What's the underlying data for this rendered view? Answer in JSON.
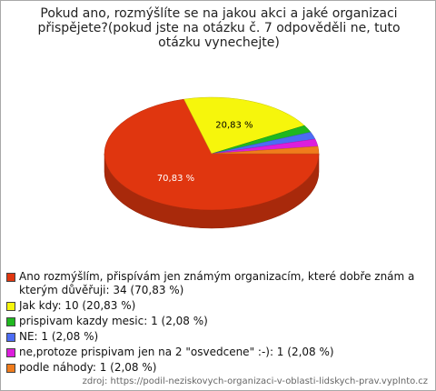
{
  "chart_data": {
    "type": "pie3d",
    "title": "Pokud ano, rozmýšlíte se na jakou akci a jaké organizaci přispějete?(pokud jste na otázku č. 7 odpověděli ne, tuto otázku vynechejte)",
    "series": [
      {
        "name": "Ano rozmýšlím, přispívám jen známým organizacím, které dobře znám a kterým důvěřuji: 34 (70,83 %)",
        "color": "#e0360f",
        "value": 70.83,
        "value_label": "70,83 %"
      },
      {
        "name": "Jak kdy: 10 (20,83 %)",
        "color": "#f6f60c",
        "value": 20.83,
        "value_label": "20,83 %"
      },
      {
        "name": "prispivam kazdy mesic: 1 (2,08 %)",
        "color": "#1fb81f",
        "value": 2.08
      },
      {
        "name": "NE: 1 (2,08 %)",
        "color": "#4c6cf4",
        "value": 2.08
      },
      {
        "name": "ne,protoze prispivam jen na 2 \"osvedcene\" :-): 1 (2,08 %)",
        "color": "#dc1edc",
        "value": 2.08
      },
      {
        "name": "podle náhody: 1 (2,08 %)",
        "color": "#f07c1c",
        "value": 2.08
      }
    ],
    "source": "zdroj: https://podil-neziskovych-organizaci-v-oblasti-lidskych-prav.vyplnto.cz"
  }
}
